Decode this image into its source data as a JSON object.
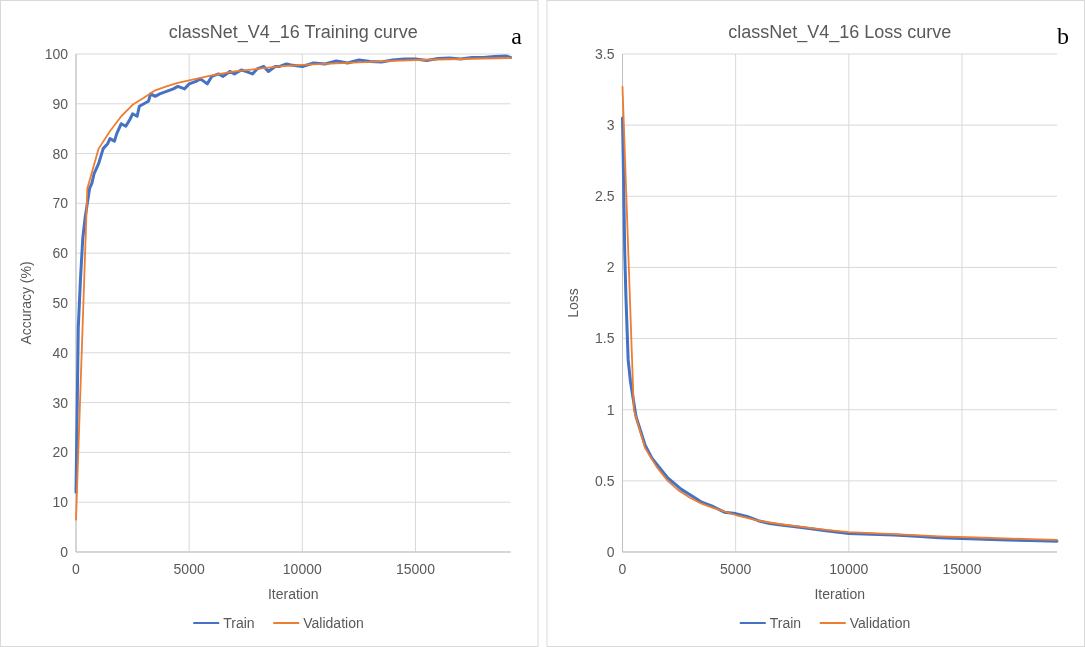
{
  "chart_data": [
    {
      "type": "line",
      "title": "classNet_V4_16 Training curve",
      "xlabel": "Iteration",
      "ylabel": "Accuracy (%)",
      "annotations": [
        "a"
      ],
      "xlim": [
        0,
        19200
      ],
      "xticks": [
        0,
        5000,
        10000,
        15000
      ],
      "ylim": [
        0,
        100
      ],
      "yticks": [
        0,
        10,
        20,
        30,
        40,
        50,
        60,
        70,
        80,
        90,
        100
      ],
      "grid": true,
      "legend": "bottom",
      "series": [
        {
          "name": "Train",
          "color": "#4472c4",
          "x": [
            0,
            100,
            200,
            300,
            400,
            500,
            600,
            700,
            800,
            900,
            1000,
            1200,
            1400,
            1500,
            1700,
            1800,
            2000,
            2200,
            2400,
            2500,
            2700,
            2800,
            3000,
            3200,
            3300,
            3500,
            3700,
            4000,
            4300,
            4500,
            4800,
            5000,
            5300,
            5500,
            5800,
            6000,
            6300,
            6500,
            6800,
            7000,
            7300,
            7500,
            7800,
            8000,
            8300,
            8500,
            8800,
            9000,
            9300,
            9500,
            10000,
            10500,
            11000,
            11500,
            12000,
            12500,
            13000,
            13500,
            14000,
            14500,
            15000,
            15500,
            16000,
            16500,
            17000,
            17500,
            18000,
            18500,
            19000,
            19200
          ],
          "values": [
            12,
            45,
            55,
            63,
            67,
            70,
            73,
            74,
            76,
            77,
            78,
            81,
            82,
            83,
            82.5,
            84,
            86,
            85.5,
            87,
            88,
            87.5,
            89.5,
            90,
            90.5,
            92,
            91.5,
            92,
            92.5,
            93,
            93.5,
            93,
            94,
            94.5,
            95,
            94,
            95.5,
            96,
            95.5,
            96.5,
            96,
            96.8,
            96.5,
            96,
            97,
            97.5,
            96.5,
            97.5,
            97.5,
            98,
            97.8,
            97.5,
            98.2,
            98,
            98.6,
            98.2,
            98.8,
            98.5,
            98.4,
            98.8,
            99,
            99,
            98.7,
            99.1,
            99.2,
            99,
            99.3,
            99.3,
            99.5,
            99.6,
            99.3
          ]
        },
        {
          "name": "Validation",
          "color": "#ed7d31",
          "x": [
            0,
            500,
            1000,
            1500,
            2000,
            2500,
            3000,
            3500,
            4000,
            4500,
            5000,
            6000,
            7000,
            8000,
            9000,
            10000,
            11000,
            12000,
            13000,
            14000,
            15000,
            16000,
            17000,
            18000,
            19200
          ],
          "values": [
            6.5,
            73,
            81,
            84.5,
            87.5,
            89.8,
            91.2,
            92.7,
            93.5,
            94.2,
            94.7,
            95.7,
            96.5,
            97,
            97.5,
            97.8,
            98,
            98.2,
            98.4,
            98.6,
            98.8,
            98.9,
            99,
            99.1,
            99.2
          ]
        }
      ]
    },
    {
      "type": "line",
      "title": "classNet_V4_16 Loss curve",
      "xlabel": "Iteration",
      "ylabel": "Loss",
      "annotations": [
        "b"
      ],
      "xlim": [
        0,
        19200
      ],
      "xticks": [
        0,
        5000,
        10000,
        15000
      ],
      "ylim": [
        0,
        3.5
      ],
      "yticks": [
        0,
        {
          "value": 0.5,
          "label": "0.5"
        },
        1,
        {
          "value": 1.5,
          "label": "1.5"
        },
        2,
        {
          "value": 2.5,
          "label": "2.5"
        },
        3,
        {
          "value": 3.5,
          "label": "3.5"
        }
      ],
      "grid": true,
      "legend": "bottom",
      "series": [
        {
          "name": "Train",
          "color": "#4472c4",
          "x": [
            0,
            50,
            100,
            150,
            250,
            350,
            450,
            600,
            800,
            1000,
            1300,
            1600,
            2000,
            2300,
            2600,
            3000,
            3300,
            3500,
            4000,
            4500,
            5000,
            5500,
            6000,
            6500,
            7000,
            8000,
            9000,
            10000,
            11000,
            12000,
            13000,
            14000,
            15000,
            16000,
            17000,
            18000,
            19200
          ],
          "values": [
            3.05,
            2.6,
            2.1,
            1.8,
            1.35,
            1.2,
            1.1,
            0.95,
            0.85,
            0.75,
            0.66,
            0.6,
            0.52,
            0.48,
            0.44,
            0.4,
            0.37,
            0.35,
            0.32,
            0.28,
            0.27,
            0.25,
            0.22,
            0.2,
            0.19,
            0.17,
            0.15,
            0.13,
            0.125,
            0.12,
            0.11,
            0.1,
            0.095,
            0.09,
            0.085,
            0.08,
            0.075
          ]
        },
        {
          "name": "Validation",
          "color": "#ed7d31",
          "x": [
            0,
            500,
            1000,
            1500,
            2000,
            2500,
            3000,
            3500,
            4000,
            5000,
            6000,
            7000,
            8000,
            9000,
            10000,
            12000,
            14000,
            16000,
            18000,
            19200
          ],
          "values": [
            3.27,
            1.0,
            0.73,
            0.6,
            0.5,
            0.43,
            0.38,
            0.34,
            0.31,
            0.26,
            0.22,
            0.195,
            0.175,
            0.155,
            0.14,
            0.125,
            0.11,
            0.1,
            0.09,
            0.085
          ]
        }
      ]
    }
  ]
}
